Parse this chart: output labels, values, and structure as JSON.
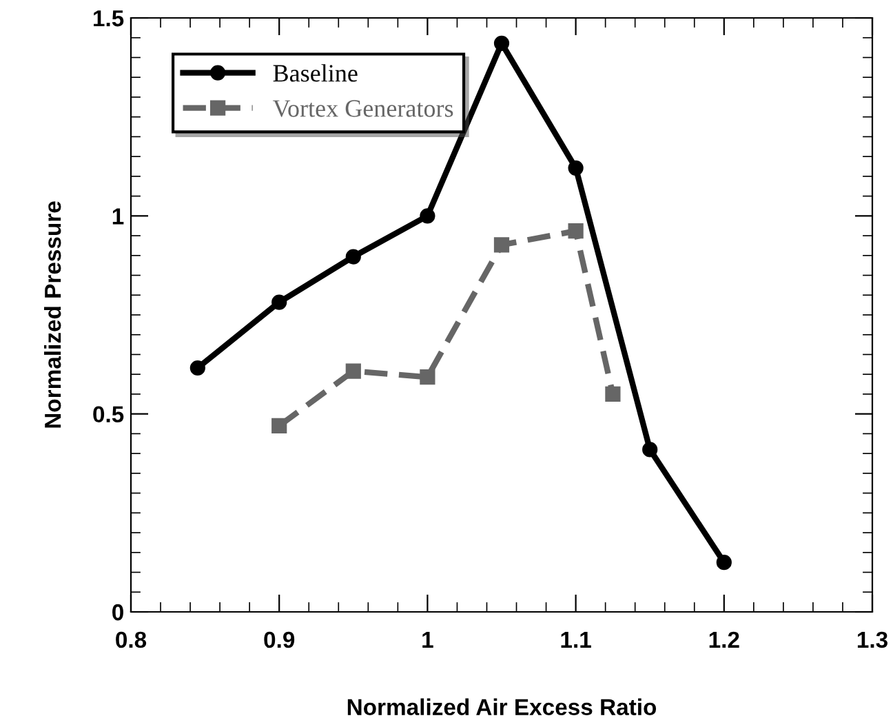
{
  "chart_data": {
    "type": "line",
    "xlabel": "Normalized Air Excess Ratio",
    "ylabel": "Normalized Pressure",
    "xlim": [
      0.8,
      1.3
    ],
    "xticks": [
      0.8,
      0.9,
      1,
      1.1,
      1.2,
      1.3
    ],
    "ylim": [
      0,
      1.5
    ],
    "yticks": [
      0,
      0.5,
      1,
      1.5
    ],
    "grid": false,
    "legend": "top left",
    "series": [
      {
        "name": "Baseline",
        "color": "#000000",
        "marker": "circle",
        "line_style": "solid",
        "x": [
          0.845,
          0.9,
          0.95,
          1.0,
          1.05,
          1.1,
          1.15,
          1.2
        ],
        "values": [
          0.616,
          0.782,
          0.897,
          1.0,
          1.436,
          1.121,
          0.41,
          0.125
        ]
      },
      {
        "name": "Vortex Generators",
        "color": "#666666",
        "marker": "square",
        "line_style": "dashed",
        "x": [
          0.9,
          0.95,
          1.0,
          1.05,
          1.1,
          1.125
        ],
        "values": [
          0.47,
          0.608,
          0.593,
          0.927,
          0.962,
          0.55
        ]
      }
    ]
  }
}
